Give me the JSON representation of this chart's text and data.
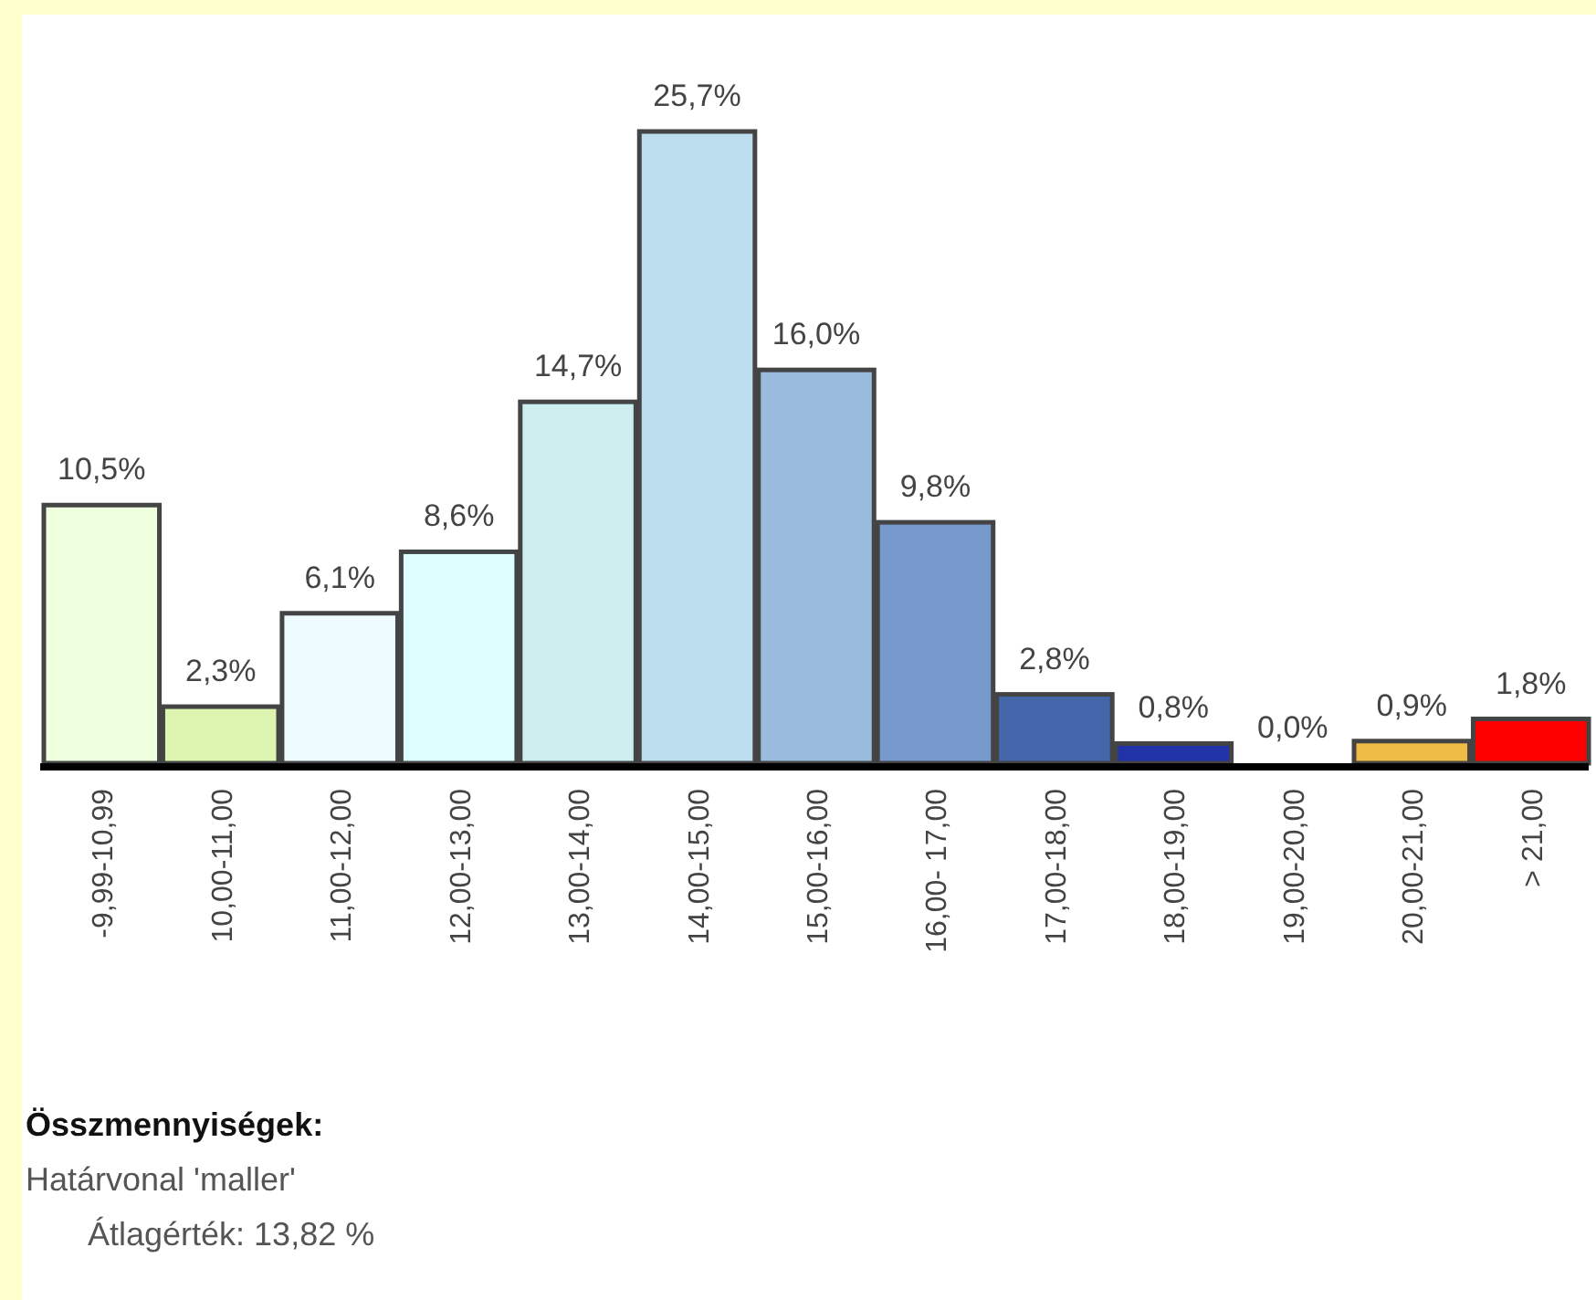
{
  "chart_data": {
    "type": "bar",
    "categories": [
      "-9,99-10,99",
      "10,00-11,00",
      "11,00-12,00",
      "12,00-13,00",
      "13,00-14,00",
      "14,00-15,00",
      "15,00-16,00",
      "16,00- 17,00",
      "17,00-18,00",
      "18,00-19,00",
      "19,00-20,00",
      "20,00-21,00",
      "> 21,00"
    ],
    "values": [
      10.5,
      2.3,
      6.1,
      8.6,
      14.7,
      25.7,
      16.0,
      9.8,
      2.8,
      0.8,
      0.0,
      0.9,
      1.8
    ],
    "value_labels": [
      "10,5%",
      "2,3%",
      "6,1%",
      "8,6%",
      "14,7%",
      "25,7%",
      "16,0%",
      "9,8%",
      "2,8%",
      "0,8%",
      "0,0%",
      "0,9%",
      "1,8%"
    ],
    "colors": [
      "#eeffdd",
      "#ddf5b0",
      "#eefcff",
      "#ddffff",
      "#cceeee",
      "#bbddee",
      "#99bbdd",
      "#7799cc",
      "#4466aa",
      "#2233aa",
      "#ffffff",
      "#eebb44",
      "#ff0000"
    ],
    "annotations": [
      "Összmennyiségek:",
      "Határvonal 'maller'",
      "Átlagérték: 13,82 %"
    ]
  }
}
